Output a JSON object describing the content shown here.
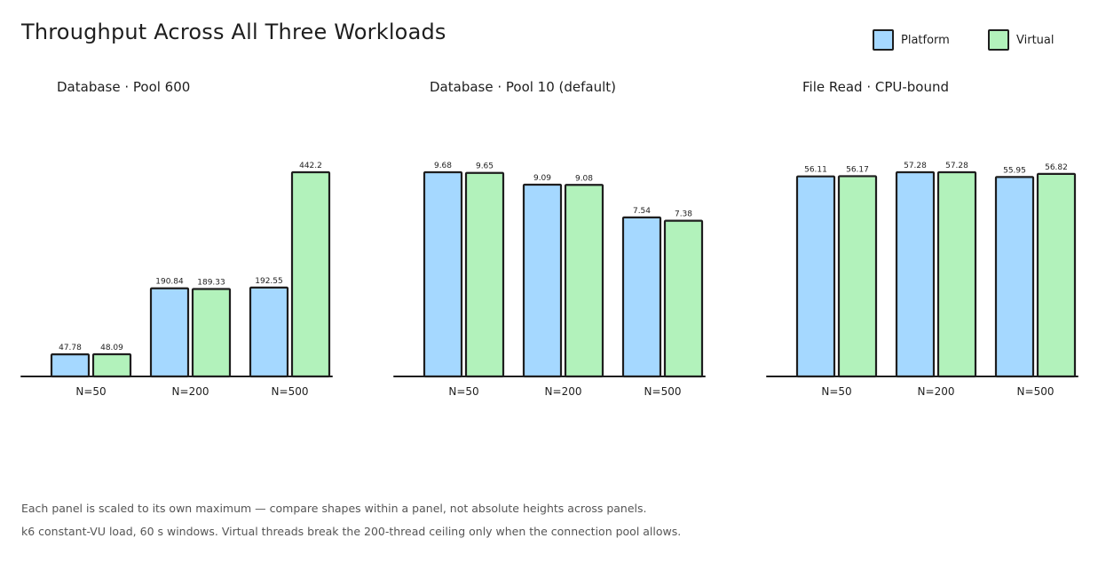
{
  "title": "Throughput Across All Three Workloads",
  "legend": [
    {
      "label": "Platform",
      "color": "#a5d8ff"
    },
    {
      "label": "Virtual",
      "color": "#b2f2bb"
    }
  ],
  "chart_data": [
    {
      "type": "bar",
      "title": "Database · Pool 600",
      "categories": [
        "N=50",
        "N=200",
        "N=500"
      ],
      "series": [
        {
          "name": "Platform",
          "values": [
            47.78,
            190.84,
            192.55
          ],
          "labels": [
            "47.78",
            "190.84",
            "192.55"
          ]
        },
        {
          "name": "Virtual",
          "values": [
            48.09,
            189.33,
            442.2
          ],
          "labels": [
            "48.09",
            "189.33",
            "442.2"
          ]
        }
      ],
      "ylim": [
        0,
        442.2
      ],
      "grid": false,
      "legend_position": "top-right"
    },
    {
      "type": "bar",
      "title": "Database · Pool 10 (default)",
      "categories": [
        "N=50",
        "N=200",
        "N=500"
      ],
      "series": [
        {
          "name": "Platform",
          "values": [
            9.68,
            9.09,
            7.54
          ],
          "labels": [
            "9.68",
            "9.09",
            "7.54"
          ]
        },
        {
          "name": "Virtual",
          "values": [
            9.65,
            9.08,
            7.38
          ],
          "labels": [
            "9.65",
            "9.08",
            "7.38"
          ]
        }
      ],
      "ylim": [
        0,
        9.68
      ],
      "grid": false,
      "legend_position": "top-right"
    },
    {
      "type": "bar",
      "title": "File Read · CPU-bound",
      "categories": [
        "N=50",
        "N=200",
        "N=500"
      ],
      "series": [
        {
          "name": "Platform",
          "values": [
            56.11,
            57.28,
            55.95
          ],
          "labels": [
            "56.11",
            "57.28",
            "55.95"
          ]
        },
        {
          "name": "Virtual",
          "values": [
            56.17,
            57.28,
            56.82
          ],
          "labels": [
            "56.17",
            "57.28",
            "56.82"
          ]
        }
      ],
      "ylim": [
        0,
        57.28
      ],
      "grid": false,
      "legend_position": "top-right"
    }
  ],
  "footnotes": [
    "Each panel is scaled to its own maximum — compare shapes within a panel, not absolute heights across panels.",
    "k6 constant-VU load, 60 s windows. Virtual threads break the 200-thread ceiling only when the connection pool allows."
  ]
}
